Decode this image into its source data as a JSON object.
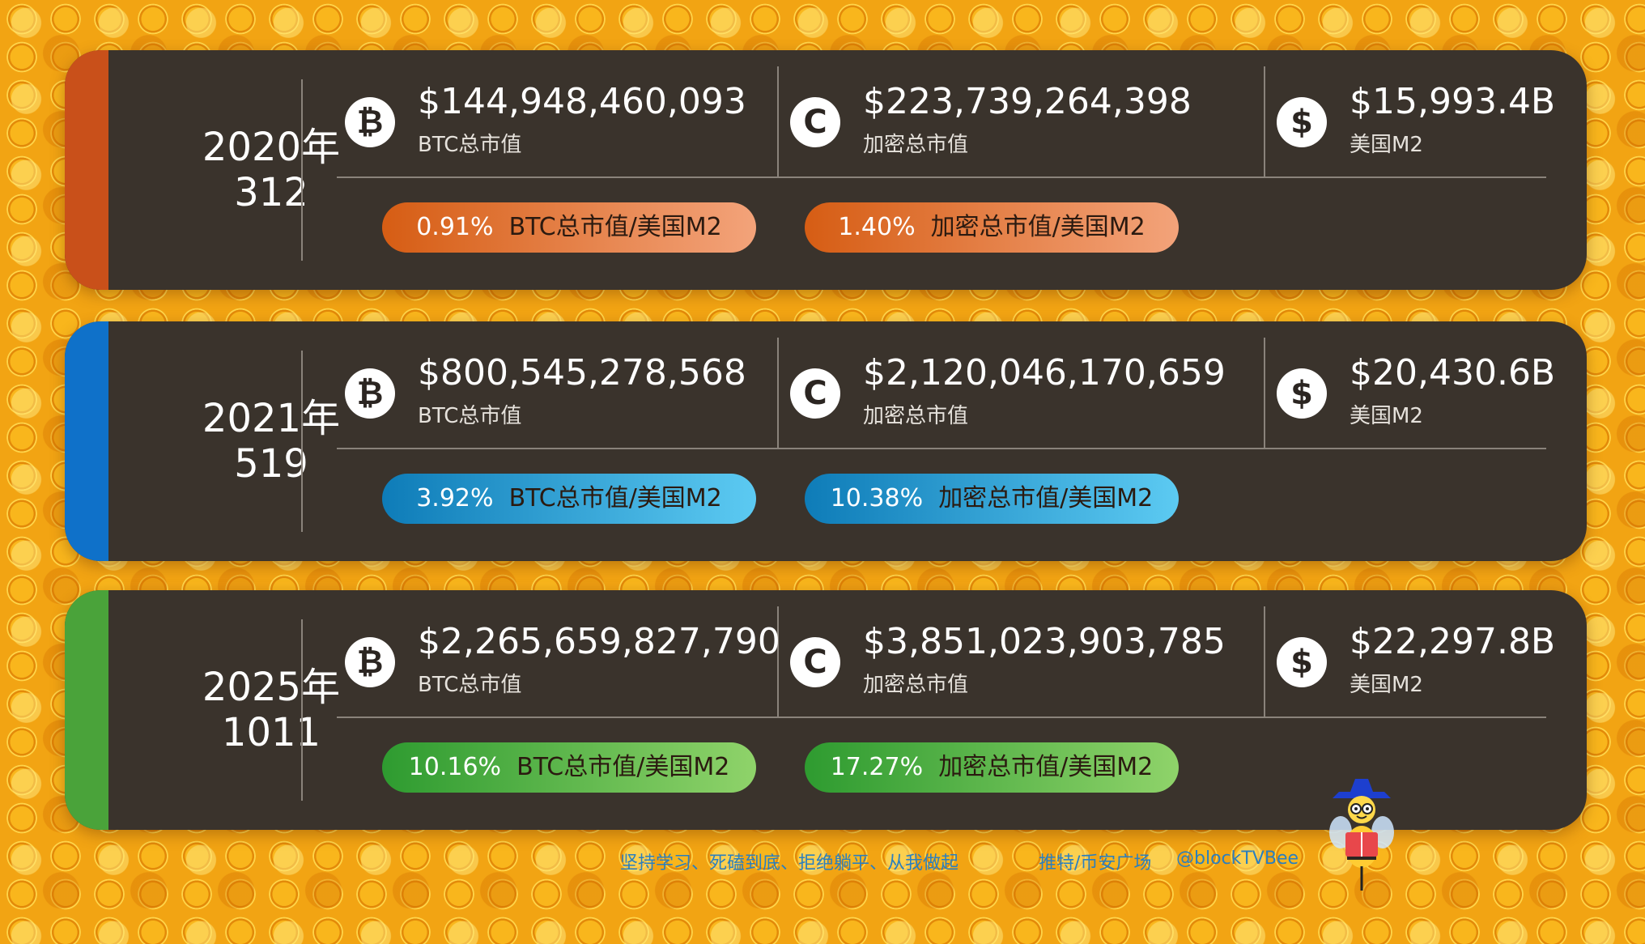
{
  "colors": {
    "panel": "#3a332c",
    "orange_accent": "#c9501a",
    "blue_accent": "#0f71c9",
    "green_accent": "#4aa33a"
  },
  "icons": {
    "btc": "bitcoin-icon",
    "crypto": "crypto-c-icon",
    "m2": "dollar-icon"
  },
  "rows": [
    {
      "year": "2020年",
      "date": "312",
      "btc": {
        "value": "$144,948,460,093",
        "label": "BTC总市值"
      },
      "crypto": {
        "value": "$223,739,264,398",
        "label": "加密总市值"
      },
      "m2": {
        "value": "$15,993.4B",
        "label": "美国M2"
      },
      "btc_ratio": {
        "pct": "0.91%",
        "label": "BTC总市值/美国M2"
      },
      "crypto_ratio": {
        "pct": "1.40%",
        "label": "加密总市值/美国M2"
      }
    },
    {
      "year": "2021年",
      "date": "519",
      "btc": {
        "value": "$800,545,278,568",
        "label": "BTC总市值"
      },
      "crypto": {
        "value": "$2,120,046,170,659",
        "label": "加密总市值"
      },
      "m2": {
        "value": "$20,430.6B",
        "label": "美国M2"
      },
      "btc_ratio": {
        "pct": "3.92%",
        "label": "BTC总市值/美国M2"
      },
      "crypto_ratio": {
        "pct": "10.38%",
        "label": "加密总市值/美国M2"
      }
    },
    {
      "year": "2025年",
      "date": "1011",
      "btc": {
        "value": "$2,265,659,827,790",
        "label": "BTC总市值"
      },
      "crypto": {
        "value": "$3,851,023,903,785",
        "label": "加密总市值"
      },
      "m2": {
        "value": "$22,297.8B",
        "label": "美国M2"
      },
      "btc_ratio": {
        "pct": "10.16%",
        "label": "BTC总市值/美国M2"
      },
      "crypto_ratio": {
        "pct": "17.27%",
        "label": "加密总市值/美国M2"
      }
    }
  ],
  "footer": {
    "slogan": "坚持学习、死磕到底、拒绝躺平、从我做起",
    "promo": "推特/币安广场",
    "handle": "@blockTVBee"
  }
}
